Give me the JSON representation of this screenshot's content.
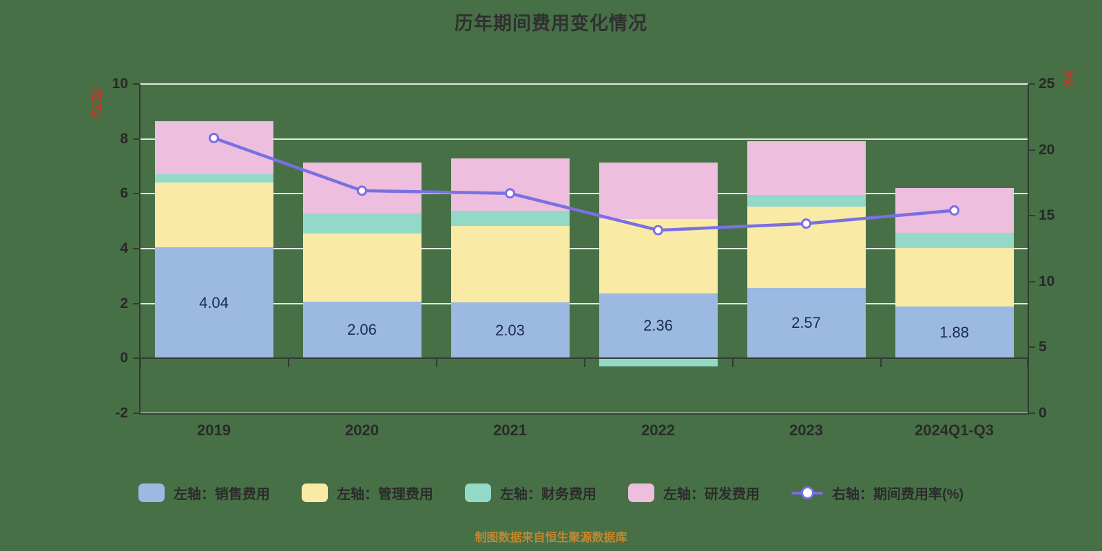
{
  "title": "历年期间费用变化情况",
  "footer_note": "制图数据来自恒生聚源数据库",
  "colors": {
    "background": "#477046",
    "grid": "#f2f2e6",
    "axis": "#333b33",
    "axis_name_text": "#dd2c20",
    "title_text": "#303030",
    "tick_text": "#272727",
    "bar_label_text": "#1c2b4a",
    "note_text": "#c2872e"
  },
  "left_axis": {
    "name": "(亿元)",
    "ticks": [
      10,
      8,
      6,
      4,
      2,
      0,
      -2
    ],
    "min": -2,
    "max": 10
  },
  "right_axis": {
    "name": "(%)",
    "ticks": [
      25,
      20,
      15,
      10,
      5,
      0
    ],
    "min": 0,
    "max": 25
  },
  "chart_data": {
    "type": "bar",
    "subtype": "stacked-bars-with-line",
    "title": "历年期间费用变化情况",
    "categories": [
      "2019",
      "2020",
      "2021",
      "2022",
      "2023",
      "2024Q1-Q3"
    ],
    "series": [
      {
        "name": "左轴：销售费用",
        "type": "bar",
        "axis": "left",
        "color": "#9cb9e2",
        "values": [
          4.04,
          2.06,
          2.03,
          2.36,
          2.57,
          1.88
        ],
        "data_labels": [
          "4.04",
          "2.06",
          "2.03",
          "2.36",
          "2.57",
          "1.88"
        ]
      },
      {
        "name": "左轴：管理费用",
        "type": "bar",
        "axis": "left",
        "color": "#f9eba6",
        "values": [
          2.37,
          2.5,
          2.81,
          2.73,
          2.95,
          2.15
        ]
      },
      {
        "name": "左轴：财务费用",
        "type": "bar",
        "axis": "left",
        "color": "#93d9c8",
        "values": [
          0.3,
          0.72,
          0.53,
          -0.3,
          0.43,
          0.55
        ]
      },
      {
        "name": "左轴：研发费用",
        "type": "bar",
        "axis": "left",
        "color": "#edbedd",
        "values": [
          1.93,
          1.86,
          1.93,
          2.05,
          1.97,
          1.62
        ]
      },
      {
        "name": "右轴：期间费用率(%)",
        "type": "line",
        "axis": "right",
        "color": "#7a6fe3",
        "marker": "circle",
        "values": [
          20.9,
          16.9,
          16.7,
          13.9,
          14.4,
          15.4
        ]
      }
    ],
    "ylim_left": [
      -2,
      10
    ],
    "ylim_right": [
      0,
      25
    ],
    "grid": true,
    "legend_position": "bottom"
  }
}
